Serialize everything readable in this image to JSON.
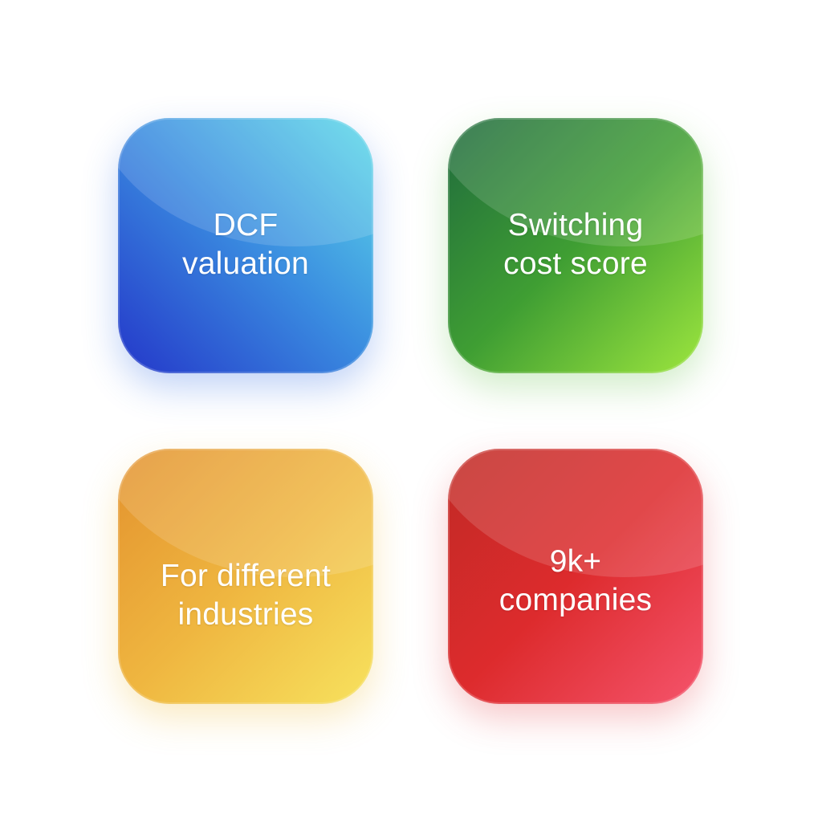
{
  "tiles": [
    {
      "line1": "DCF",
      "line2": "valuation",
      "color": "#3a7fdc"
    },
    {
      "line1": "Switching",
      "line2": "cost score",
      "color": "#43a535"
    },
    {
      "line1": "For different",
      "line2": "industries",
      "color": "#efb640"
    },
    {
      "line1": "9k+",
      "line2": "companies",
      "color": "#dd2b2d"
    }
  ]
}
